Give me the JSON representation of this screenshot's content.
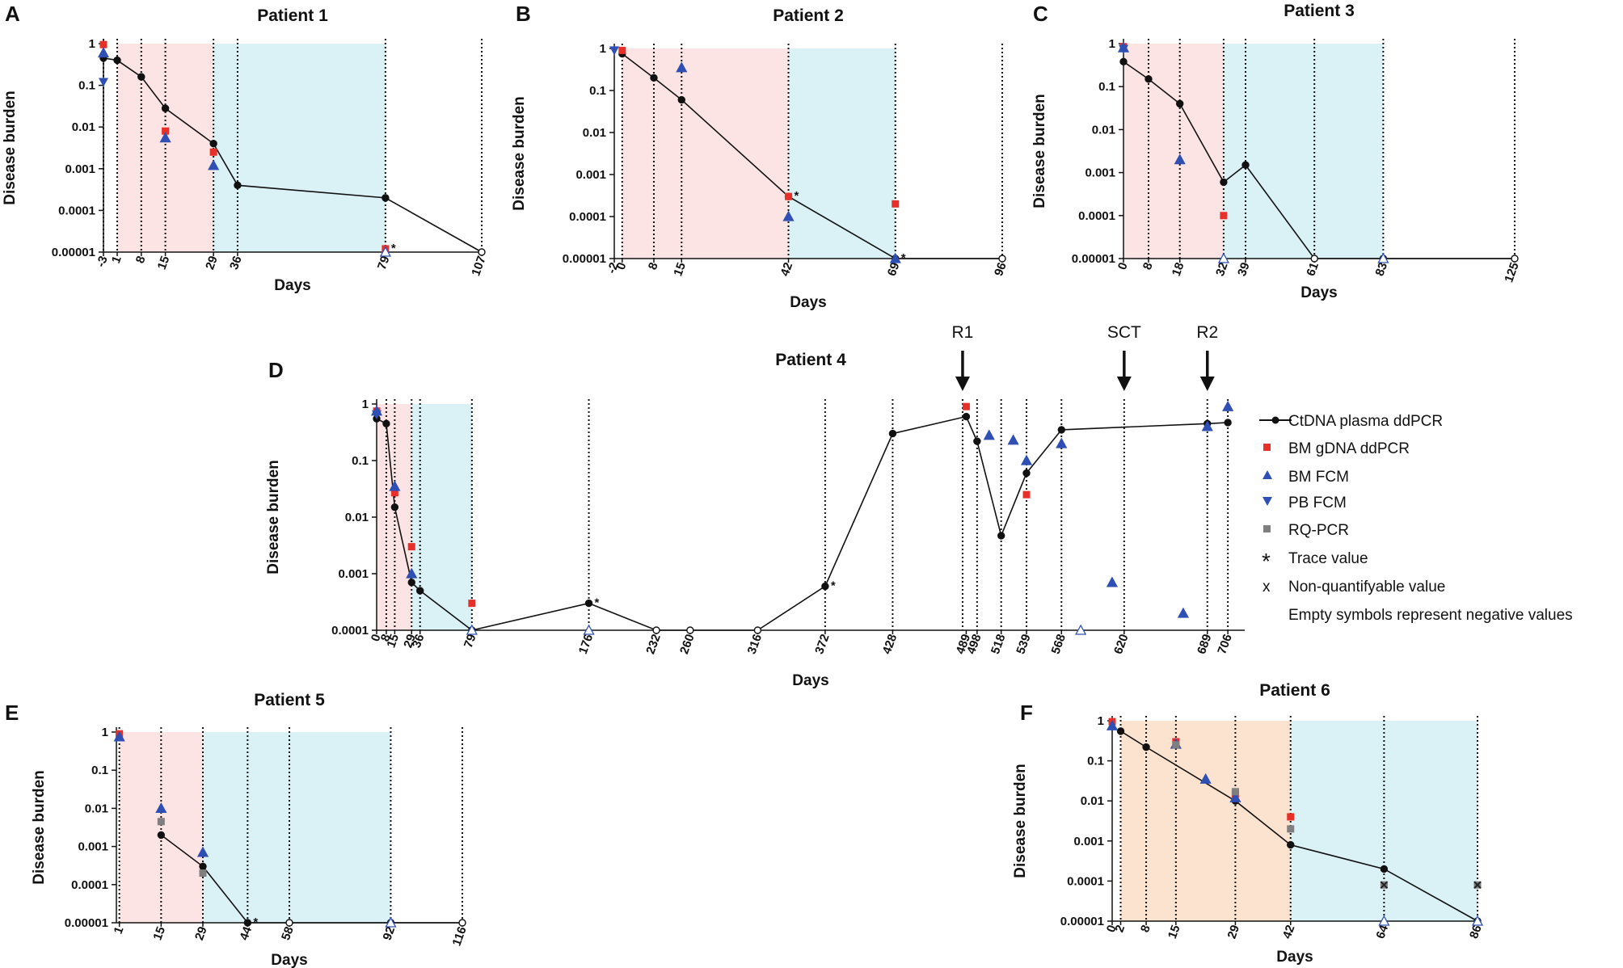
{
  "colors": {
    "line": "#111111",
    "red": "#e8302a",
    "blue": "#2e4fb3",
    "gray": "#7f7f7f",
    "pink": "#fce4e4",
    "cyan": "#daf1f6",
    "peach": "#fbe3d0"
  },
  "legend": {
    "ctdna": "CtDNA plasma ddPCR",
    "bm_gdna": "BM gDNA ddPCR",
    "bm_fcm": "BM FCM",
    "pb_fcm": "PB FCM",
    "rq_pcr": "RQ-PCR",
    "trace_symbol": "*",
    "trace": "Trace value",
    "nonquant_symbol": "x",
    "nonquant": "Non-quantifyable value",
    "empty": "Empty symbols represent negative values"
  },
  "chart_data": [
    {
      "letter": "A",
      "title": "Patient 1",
      "type": "line",
      "xlabel": "Days",
      "ylabel": "Disease burden",
      "xlim": [
        -3,
        107
      ],
      "y_log_range": [
        1e-05,
        1
      ],
      "yticks": [
        "1",
        "0.1",
        "0.01",
        "0.001",
        "0.0001",
        "0.00001"
      ],
      "xticks": [
        "-3",
        "1",
        "8",
        "15",
        "29",
        "36",
        "79",
        "107"
      ],
      "xtick_values": [
        -3,
        1,
        8,
        15,
        29,
        36,
        79,
        107
      ],
      "vlines": [
        -3,
        1,
        8,
        15,
        29,
        36,
        79,
        107
      ],
      "shading": [
        {
          "from": 1,
          "to": 29,
          "color": "pink"
        },
        {
          "from": 29,
          "to": 79,
          "color": "cyan"
        }
      ],
      "series": [
        {
          "name": "CtDNA plasma ddPCR",
          "x": [
            -3,
            1,
            8,
            15,
            29,
            36,
            79,
            107
          ],
          "y": [
            0.45,
            0.4,
            0.16,
            0.028,
            0.004,
            0.0004,
            0.0002,
            1e-05
          ],
          "negative": [
            107
          ]
        },
        {
          "name": "BM gDNA ddPCR",
          "x": [
            -3,
            15,
            29,
            79
          ],
          "y": [
            0.95,
            0.008,
            0.0025,
            1.2e-05
          ]
        },
        {
          "name": "BM FCM",
          "x": [
            -3,
            15,
            29,
            79
          ],
          "y": [
            0.6,
            0.0055,
            0.0012,
            1e-05
          ],
          "negative": [
            79
          ]
        },
        {
          "name": "PB FCM",
          "x": [
            -3
          ],
          "y": [
            0.12
          ]
        }
      ],
      "trace": [
        [
          79,
          1.2e-05
        ]
      ]
    },
    {
      "letter": "B",
      "title": "Patient 2",
      "type": "line",
      "xlabel": "Days",
      "ylabel": "Disease burden",
      "xlim": [
        -2,
        96
      ],
      "y_log_range": [
        1e-05,
        1
      ],
      "yticks": [
        "1",
        "0.1",
        "0.01",
        "0.001",
        "0.0001",
        "0.00001"
      ],
      "xticks": [
        "-2",
        "0",
        "8",
        "15",
        "42",
        "69",
        "96"
      ],
      "xtick_values": [
        -2,
        0,
        8,
        15,
        42,
        69,
        96
      ],
      "vlines": [
        0,
        8,
        15,
        42,
        69,
        96
      ],
      "shading": [
        {
          "from": 0,
          "to": 42,
          "color": "pink"
        },
        {
          "from": 42,
          "to": 69,
          "color": "cyan"
        }
      ],
      "series": [
        {
          "name": "CtDNA plasma ddPCR",
          "x": [
            0,
            8,
            15,
            42,
            69,
            96
          ],
          "y": [
            0.75,
            0.2,
            0.06,
            0.0003,
            1e-05,
            1e-05
          ],
          "negative": [
            96
          ]
        },
        {
          "name": "BM gDNA ddPCR",
          "x": [
            0,
            42,
            69
          ],
          "y": [
            0.9,
            0.0003,
            0.0002
          ]
        },
        {
          "name": "BM FCM",
          "x": [
            15,
            42,
            69
          ],
          "y": [
            0.35,
            0.0001,
            1e-05
          ]
        },
        {
          "name": "PB FCM",
          "x": [
            -2
          ],
          "y": [
            0.9
          ]
        }
      ],
      "trace": [
        [
          42,
          0.0003
        ],
        [
          69,
          1e-05
        ]
      ]
    },
    {
      "letter": "C",
      "title": "Patient 3",
      "type": "line",
      "xlabel": "Days",
      "ylabel": "Disease burden",
      "xlim": [
        0,
        125
      ],
      "y_log_range": [
        1e-05,
        1
      ],
      "yticks": [
        "1",
        "0.1",
        "0.01",
        "0.001",
        "0.0001",
        "0.00001"
      ],
      "xticks": [
        "0",
        "8",
        "18",
        "32",
        "39",
        "61",
        "83",
        "125"
      ],
      "xtick_values": [
        0,
        8,
        18,
        32,
        39,
        61,
        83,
        125
      ],
      "vlines": [
        8,
        18,
        32,
        39,
        61,
        83,
        125
      ],
      "shading": [
        {
          "from": 0,
          "to": 32,
          "color": "pink"
        },
        {
          "from": 32,
          "to": 83,
          "color": "cyan"
        }
      ],
      "series": [
        {
          "name": "CtDNA plasma ddPCR",
          "x": [
            0,
            8,
            18,
            32,
            39,
            61,
            83,
            125
          ],
          "y": [
            0.38,
            0.15,
            0.04,
            0.0006,
            0.0015,
            1e-05,
            1e-05,
            1e-05
          ],
          "negative": [
            61,
            125
          ]
        },
        {
          "name": "BM gDNA ddPCR",
          "x": [
            0,
            32
          ],
          "y": [
            0.85,
            0.0001
          ]
        },
        {
          "name": "BM FCM",
          "x": [
            0,
            18,
            32,
            83
          ],
          "y": [
            0.8,
            0.002,
            1e-05,
            1e-05
          ],
          "negative": [
            32,
            83
          ]
        },
        {
          "name": "PB FCM",
          "x": [
            0
          ],
          "y": [
            0.75
          ]
        }
      ],
      "trace": []
    },
    {
      "letter": "D",
      "title": "Patient 4",
      "type": "line",
      "xlabel": "Days",
      "ylabel": "Disease burden",
      "xlim": [
        0,
        720
      ],
      "y_log_range": [
        0.0001,
        1
      ],
      "yticks": [
        "1",
        "0.1",
        "0.01",
        "0.001",
        "0.0001"
      ],
      "xticks": [
        "0",
        "8",
        "15",
        "29",
        "36",
        "79",
        "176",
        "232",
        "260",
        "316",
        "372",
        "428",
        "489",
        "498",
        "518",
        "539",
        "568",
        "620",
        "689",
        "706"
      ],
      "xtick_values": [
        0,
        8,
        15,
        29,
        36,
        79,
        176,
        232,
        260,
        316,
        372,
        428,
        489,
        498,
        518,
        539,
        568,
        620,
        689,
        706
      ],
      "vlines": [
        8,
        15,
        29,
        36,
        79,
        176,
        372,
        428,
        486,
        498,
        518,
        539,
        568,
        620,
        689,
        706
      ],
      "shading": [
        {
          "from": 0,
          "to": 29,
          "color": "pink"
        },
        {
          "from": 29,
          "to": 79,
          "color": "cyan"
        }
      ],
      "events": [
        {
          "label": "R1",
          "x": 486
        },
        {
          "label": "SCT",
          "x": 620
        },
        {
          "label": "R2",
          "x": 689
        }
      ],
      "series": [
        {
          "name": "CtDNA plasma ddPCR",
          "x": [
            0,
            8,
            15,
            29,
            36,
            79,
            176,
            232,
            260,
            316,
            372,
            428,
            489,
            498,
            518,
            539,
            568,
            689,
            706
          ],
          "y": [
            0.55,
            0.45,
            0.015,
            0.0007,
            0.0005,
            0.0001,
            0.0003,
            0.0001,
            0.0001,
            0.0001,
            0.0006,
            0.3,
            0.6,
            0.22,
            0.0047,
            0.06,
            0.35,
            0.45,
            0.47
          ],
          "negative": [
            232,
            260,
            316
          ]
        },
        {
          "name": "BM gDNA ddPCR",
          "x": [
            0,
            15,
            29,
            79,
            489,
            539
          ],
          "y": [
            0.75,
            0.027,
            0.003,
            0.0003,
            0.9,
            0.025
          ]
        },
        {
          "name": "BM FCM",
          "x": [
            0,
            15,
            29,
            79,
            176,
            508,
            528,
            539,
            568,
            584,
            610,
            669,
            689,
            706
          ],
          "y": [
            0.75,
            0.035,
            0.001,
            0.0001,
            0.0001,
            0.28,
            0.23,
            0.1,
            0.2,
            0.0001,
            0.0007,
            0.0002,
            0.4,
            0.9
          ],
          "negative": [
            79,
            176,
            584
          ]
        },
        {
          "name": "PB FCM",
          "x": [
            0
          ],
          "y": [
            0.65
          ]
        }
      ],
      "trace": [
        [
          176,
          0.0003
        ],
        [
          372,
          0.0006
        ]
      ]
    },
    {
      "letter": "E",
      "title": "Patient 5",
      "type": "line",
      "xlabel": "Days",
      "ylabel": "Disease burden",
      "xlim": [
        0,
        116
      ],
      "y_log_range": [
        1e-05,
        1
      ],
      "yticks": [
        "1",
        "0.1",
        "0.01",
        "0.001",
        "0.0001",
        "0.00001"
      ],
      "xticks": [
        "1",
        "15",
        "29",
        "44",
        "58",
        "92",
        "116"
      ],
      "xtick_values": [
        1,
        15,
        29,
        44,
        58,
        92,
        116
      ],
      "vlines": [
        1,
        15,
        29,
        44,
        58,
        92,
        116
      ],
      "shading": [
        {
          "from": 1,
          "to": 29,
          "color": "pink"
        },
        {
          "from": 29,
          "to": 92,
          "color": "cyan"
        }
      ],
      "series": [
        {
          "name": "CtDNA plasma ddPCR",
          "x": [
            15,
            29,
            44,
            58,
            92,
            116
          ],
          "y": [
            0.002,
            0.0003,
            1e-05,
            1e-05,
            1e-05,
            1e-05
          ],
          "negative": [
            58,
            92,
            116
          ]
        },
        {
          "name": "BM gDNA ddPCR",
          "x": [
            1
          ],
          "y": [
            0.9
          ]
        },
        {
          "name": "BM FCM",
          "x": [
            1,
            15,
            29,
            92
          ],
          "y": [
            0.75,
            0.01,
            0.0007,
            1e-05
          ],
          "negative": [
            92
          ]
        },
        {
          "name": "RQ-PCR",
          "x": [
            15,
            29
          ],
          "y": [
            0.0045,
            0.0002
          ]
        }
      ],
      "trace": [
        [
          44,
          1e-05
        ]
      ]
    },
    {
      "letter": "F",
      "title": "Patient 6",
      "type": "line",
      "xlabel": "Days",
      "ylabel": "Disease burden",
      "xlim": [
        0,
        86
      ],
      "y_log_range": [
        1e-05,
        1
      ],
      "yticks": [
        "1",
        "0.1",
        "0.01",
        "0.001",
        "0.0001",
        "0.00001"
      ],
      "xticks": [
        "0",
        "2",
        "8",
        "15",
        "29",
        "42",
        "64",
        "86"
      ],
      "xtick_values": [
        0,
        2,
        8,
        15,
        29,
        42,
        64,
        86
      ],
      "vlines": [
        2,
        8,
        15,
        29,
        42,
        64,
        86
      ],
      "shading": [
        {
          "from": 2,
          "to": 42,
          "color": "peach"
        },
        {
          "from": 42,
          "to": 86,
          "color": "cyan"
        }
      ],
      "series": [
        {
          "name": "CtDNA plasma ddPCR",
          "x": [
            2,
            8,
            29,
            42,
            64,
            86
          ],
          "y": [
            0.55,
            0.22,
            0.01,
            0.0008,
            0.0002,
            1e-05
          ]
        },
        {
          "name": "BM gDNA ddPCR",
          "x": [
            0,
            15,
            29,
            42
          ],
          "y": [
            0.95,
            0.3,
            0.015,
            0.004
          ]
        },
        {
          "name": "BM FCM",
          "x": [
            0,
            15,
            22,
            29,
            64,
            86
          ],
          "y": [
            0.75,
            0.26,
            0.035,
            0.012,
            1e-05,
            1e-05
          ],
          "negative": [
            64,
            86
          ]
        },
        {
          "name": "RQ-PCR",
          "x": [
            15,
            29,
            42,
            64,
            86
          ],
          "y": [
            0.25,
            0.017,
            0.002,
            8e-05,
            8e-05
          ]
        }
      ],
      "nonquant": [
        [
          64,
          8e-05
        ],
        [
          86,
          8e-05
        ]
      ],
      "trace": []
    }
  ]
}
